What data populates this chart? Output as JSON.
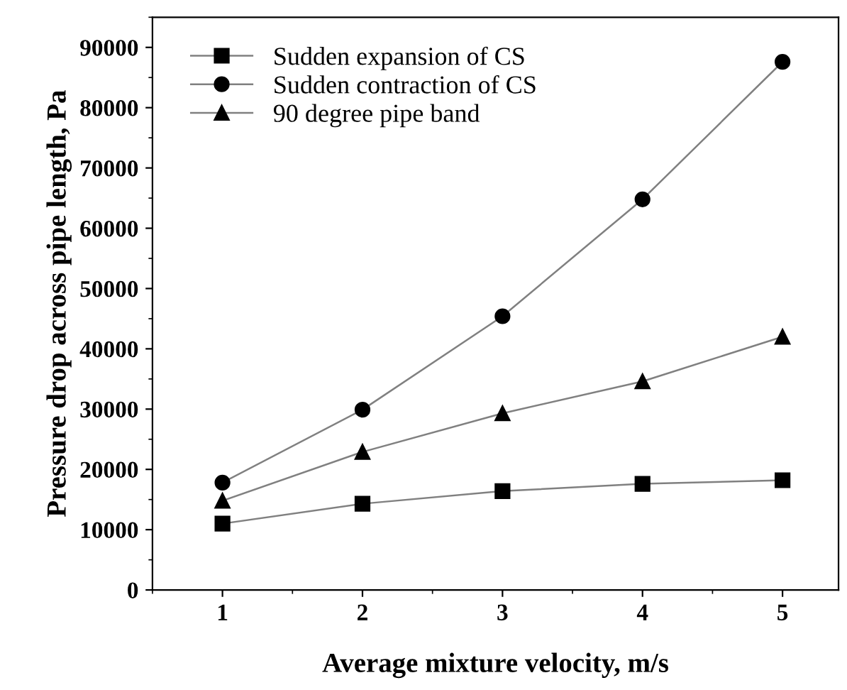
{
  "chart_data": {
    "type": "line",
    "xlabel": "Average mixture velocity, m/s",
    "ylabel": "Pressure drop across pipe length, Pa",
    "x": [
      1,
      2,
      3,
      4,
      5
    ],
    "series": [
      {
        "name": "Sudden expansion of CS",
        "color": "#000000",
        "marker": "square",
        "values": [
          11000,
          14300,
          16400,
          17600,
          18200
        ]
      },
      {
        "name": "Sudden contraction of CS",
        "color": "#000000",
        "marker": "circle",
        "values": [
          17800,
          29900,
          45400,
          64800,
          87600
        ]
      },
      {
        "name": "90 degree pipe band",
        "color": "#000000",
        "marker": "triangle",
        "values": [
          14800,
          22900,
          29300,
          34600,
          42000
        ]
      }
    ],
    "xlim": [
      0.5,
      5.4
    ],
    "xticks": [
      1,
      2,
      3,
      4,
      5
    ],
    "ylim": [
      0,
      95000
    ],
    "yticks": [
      0,
      10000,
      20000,
      30000,
      40000,
      50000,
      60000,
      70000,
      80000,
      90000
    ],
    "grid": false,
    "legend": "top left",
    "line_style": "solid"
  }
}
